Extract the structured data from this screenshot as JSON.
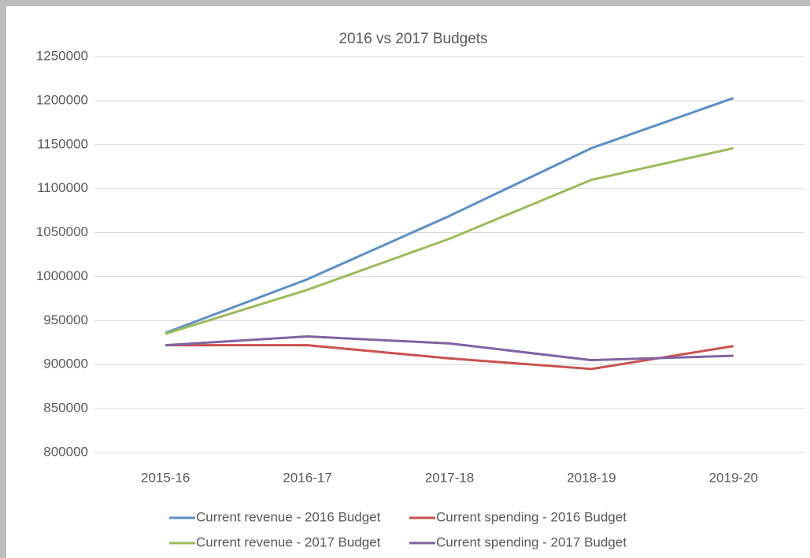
{
  "chart_data": {
    "type": "line",
    "title": "2016 vs 2017 Budgets",
    "categories": [
      "2015-16",
      "2016-17",
      "2017-18",
      "2018-19",
      "2019-20"
    ],
    "series": [
      {
        "name": "Current revenue - 2016 Budget",
        "color": "#5b8fc9",
        "values": [
          936000,
          997000,
          1069000,
          1146000,
          1203000
        ]
      },
      {
        "name": "Current spending - 2016 Budget",
        "color": "#c9524d",
        "values": [
          922000,
          922000,
          907000,
          895000,
          921000
        ]
      },
      {
        "name": "Current revenue - 2017 Budget",
        "color": "#9bbb59",
        "values": [
          935000,
          985000,
          1043000,
          1110000,
          1146000
        ]
      },
      {
        "name": "Current spending - 2017 Budget",
        "color": "#8064a2",
        "values": [
          922000,
          932000,
          924000,
          905000,
          910000
        ]
      }
    ],
    "ylim": [
      800000,
      1250000
    ],
    "yticks": [
      800000,
      850000,
      900000,
      950000,
      1000000,
      1050000,
      1100000,
      1150000,
      1200000,
      1250000
    ],
    "grid": true,
    "legend": "bottom"
  }
}
